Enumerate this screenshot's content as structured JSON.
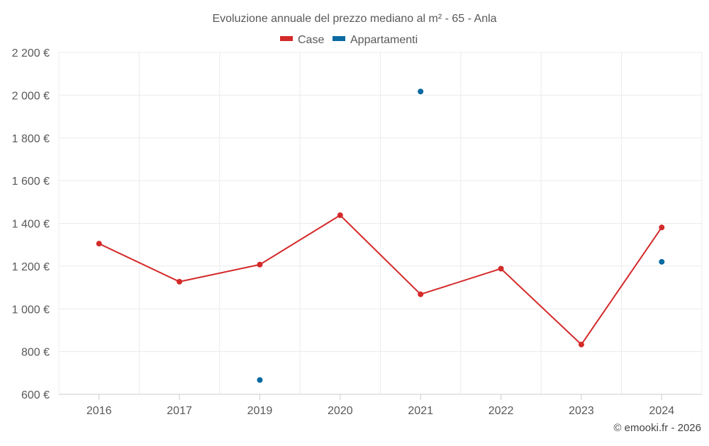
{
  "chart_data": {
    "type": "line",
    "title": "Evoluzione annuale del prezzo mediano al m² - 65 - Anla",
    "categories": [
      "2016",
      "2017",
      "2019",
      "2020",
      "2021",
      "2022",
      "2023",
      "2024"
    ],
    "series": [
      {
        "name": "Case",
        "color": "#d42a2a",
        "values": [
          1305,
          1127,
          1207,
          1438,
          1068,
          1188,
          833,
          1381
        ]
      },
      {
        "name": "Appartamenti",
        "color": "#0b6aa2",
        "values": [
          null,
          null,
          667,
          null,
          2017,
          null,
          null,
          1220
        ]
      }
    ],
    "ylim": [
      600,
      2200
    ],
    "yticks": [
      600,
      800,
      1000,
      1200,
      1400,
      1600,
      1800,
      2000,
      2200
    ],
    "ytick_labels": [
      "600 €",
      "800 €",
      "1 000 €",
      "1 200 €",
      "1 400 €",
      "1 600 €",
      "1 800 €",
      "2 000 €",
      "2 200 €"
    ],
    "xlabel": "",
    "ylabel": "",
    "grid": true,
    "legend": "top-center",
    "credit": "© emooki.fr - 2026"
  }
}
